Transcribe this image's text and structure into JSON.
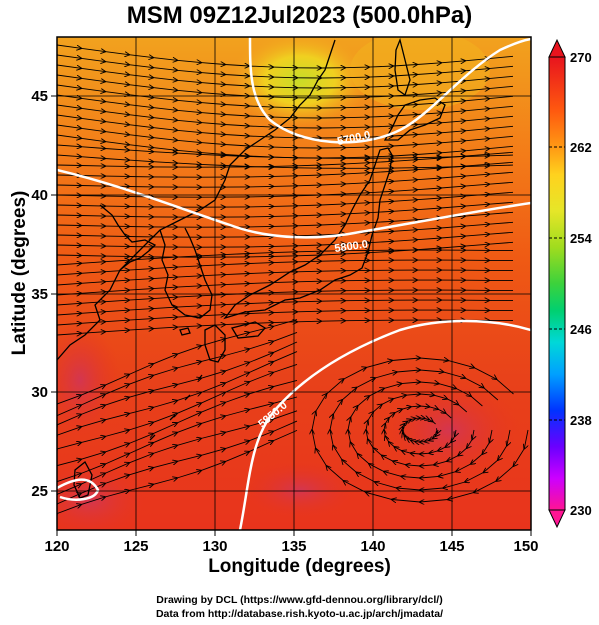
{
  "title": "MSM 09Z12Jul2023 (500.0hPa)",
  "map": {
    "x_axis": {
      "label": "Longitude (degrees)",
      "range": [
        120,
        150
      ],
      "ticks": [
        "120",
        "125",
        "130",
        "135",
        "140",
        "145",
        "150"
      ]
    },
    "y_axis": {
      "label": "Latitude  (degrees)",
      "range": [
        22.5,
        47.5
      ],
      "ticks": [
        "25",
        "30",
        "35",
        "40",
        "45"
      ]
    },
    "contour_labels": [
      "5700.0",
      "5800.0",
      "5850.0"
    ],
    "field": "500 hPa temperature (K) with streamlines and geopotential height contours"
  },
  "colorbar": {
    "min": 230,
    "max": 270,
    "tick_labels": [
      "270",
      "262",
      "254",
      "246",
      "238",
      "230"
    ],
    "colors": [
      "#ff1493",
      "#cc00ff",
      "#6a00ff",
      "#0033ff",
      "#00a0ff",
      "#00d8d8",
      "#00d070",
      "#3cd23c",
      "#a0dc1e",
      "#e6e628",
      "#ffd21e",
      "#ff9a14",
      "#ff5a0f",
      "#e8141e"
    ]
  },
  "credits": {
    "line1": "Drawing by DCL (https://www.gfd-dennou.org/library/dcl/)",
    "line2": "Data from http://database.rish.kyoto-u.ac.jp/arch/jmadata/"
  }
}
